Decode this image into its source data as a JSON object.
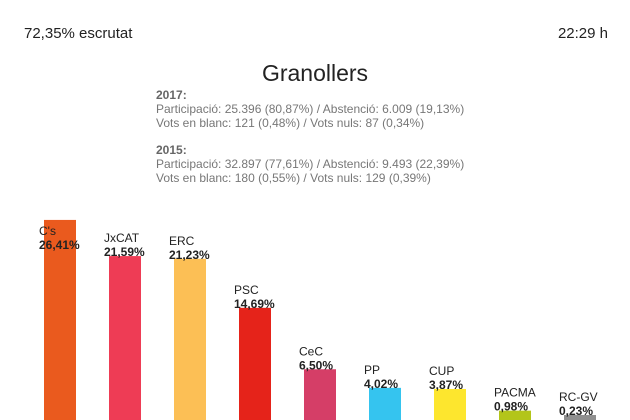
{
  "header": {
    "scrutinized": "72,35% escrutat",
    "time": "22:29 h"
  },
  "stats": {
    "y2017": {
      "year": "2017:",
      "line1": "Participació: 25.396 (80,87%) / Abstenció: 6.009 (19,13%)",
      "line2": "Vots en blanc: 121 (0,48%) / Vots nuls: 87 (0,34%)"
    },
    "y2015": {
      "year": "2015:",
      "line1": "Participació: 32.897 (77,61%) / Abstenció: 9.493 (22,39%)",
      "line2": "Vots en blanc: 180 (0,55%) / Vots nuls: 129 (0,39%)"
    }
  },
  "chart_data": {
    "type": "bar",
    "title": "Granollers",
    "categories": [
      "C's",
      "JxCAT",
      "ERC",
      "PSC",
      "CeC",
      "PP",
      "CUP",
      "PACMA",
      "RC-GV"
    ],
    "values": [
      26.41,
      21.59,
      21.23,
      14.69,
      6.5,
      4.02,
      3.87,
      0.98,
      0.23
    ],
    "value_labels": [
      "26,41%",
      "21,59%",
      "21,23%",
      "14,69%",
      "6,50%",
      "4,02%",
      "3,87%",
      "0,98%",
      "0,23%"
    ],
    "colors": [
      "#ea5a1e",
      "#ee3c55",
      "#fcbf55",
      "#e5231a",
      "#d53e67",
      "#35c4ef",
      "#fde62e",
      "#b3c51a",
      "#8f8f8f"
    ],
    "grid": false,
    "legend": "none"
  }
}
